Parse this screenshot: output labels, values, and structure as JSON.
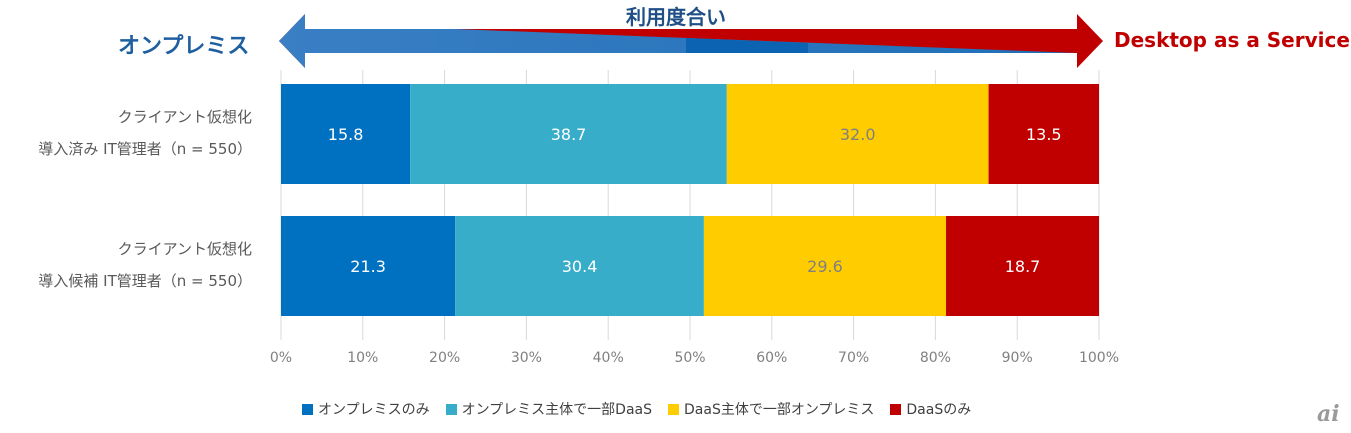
{
  "header": {
    "left_label": "オンプレミス",
    "center_label": "利用度合い",
    "right_label": "Desktop as a Service"
  },
  "colors": {
    "onprem_only": "#0070c0",
    "onprem_main": "#38adc9",
    "daas_main": "#ffcc00",
    "daas_only": "#c00000",
    "arrow_blue": "#2e75b6",
    "arrow_red": "#c00000"
  },
  "chart_data": {
    "type": "bar",
    "orientation": "horizontal",
    "stacked": "percent",
    "categories": [
      [
        "クライアント仮想化",
        "導入済み IT管理者（n = 550）"
      ],
      [
        "クライアント仮想化",
        "導入候補 IT管理者（n = 550）"
      ]
    ],
    "series": [
      {
        "name": "オンプレミスのみ",
        "values": [
          15.8,
          21.3
        ]
      },
      {
        "name": "オンプレミス主体で一部DaaS",
        "values": [
          38.7,
          30.4
        ]
      },
      {
        "name": "DaaS主体で一部オンプレミス",
        "values": [
          32.0,
          29.6
        ]
      },
      {
        "name": "DaaSのみ",
        "values": [
          13.5,
          18.7
        ]
      }
    ],
    "xlim": [
      0,
      100
    ],
    "x_ticks": [
      "0%",
      "10%",
      "20%",
      "30%",
      "40%",
      "50%",
      "60%",
      "70%",
      "80%",
      "90%",
      "100%"
    ],
    "grid": "vertical",
    "legend_position": "bottom"
  },
  "logo_text": "ai"
}
